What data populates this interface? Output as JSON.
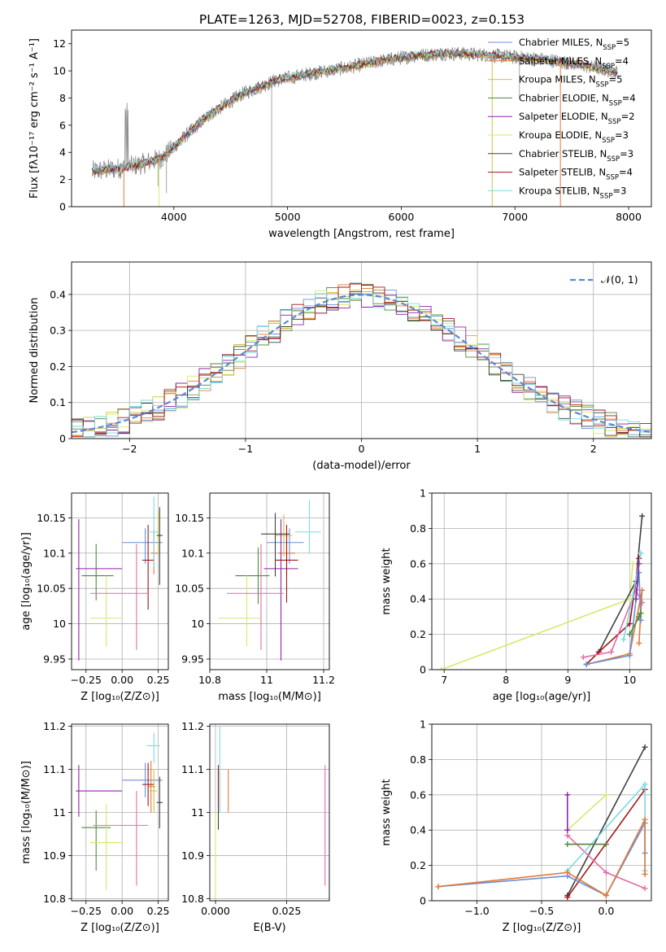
{
  "figure": {
    "title": "PLATE=1263, MJD=52708, FIBERID=0023, z=0.153"
  },
  "colors": {
    "chabrier_miles": "#6b8fd6",
    "salpeter_miles": "#e07b39",
    "kroupa_miles": "#d4c045",
    "chabrier_elodie": "#4c8a3b",
    "salpeter_elodie": "#8e24aa",
    "kroupa_elodie": "#d9e86a",
    "chabrier_stelib": "#404040",
    "salpeter_stelib": "#a31515",
    "kroupa_stelib": "#7fd9e0",
    "pink": "#e86aa8",
    "green": "#2e7d32",
    "data_gray": "#808080",
    "normal_curve": "#5b86d6",
    "grid": "#b0b0b0"
  },
  "chart_data": [
    {
      "id": "spectrum",
      "type": "line",
      "title": "PLATE=1263, MJD=52708, FIBERID=0023, z=0.153",
      "xlabel": "wavelength [Angstrom, rest frame]",
      "ylabel": "Flux [fλ10⁻¹⁷ erg cm⁻² s⁻¹ A⁻¹]",
      "xlim": [
        3100,
        8200
      ],
      "ylim": [
        0,
        13
      ],
      "xticks": [
        4000,
        5000,
        6000,
        7000,
        8000
      ],
      "yticks": [
        0,
        2,
        4,
        6,
        8,
        10,
        12
      ],
      "legend": "top-right",
      "series": [
        {
          "name": "Chabrier MILES, N_SSP=5",
          "color": "#6b8fd6"
        },
        {
          "name": "Salpeter MILES, N_SSP=4",
          "color": "#e07b39"
        },
        {
          "name": "Kroupa MILES, N_SSP=5",
          "color": "#d4c045"
        },
        {
          "name": "Chabrier ELODIE, N_SSP=4",
          "color": "#4c8a3b"
        },
        {
          "name": "Salpeter ELODIE, N_SSP=2",
          "color": "#8e24aa"
        },
        {
          "name": "Kroupa ELODIE, N_SSP=3",
          "color": "#d9e86a"
        },
        {
          "name": "Chabrier STELIB, N_SSP=3",
          "color": "#404040"
        },
        {
          "name": "Salpeter STELIB, N_SSP=4",
          "color": "#a31515"
        },
        {
          "name": "Kroupa STELIB, N_SSP=3",
          "color": "#7fd9e0"
        }
      ],
      "continuum": {
        "x": [
          3280,
          3500,
          3700,
          3900,
          4100,
          4300,
          4600,
          4900,
          5200,
          5500,
          5800,
          6100,
          6400,
          6700,
          7000,
          7300,
          7600,
          7900
        ],
        "y": [
          2.6,
          2.8,
          3.1,
          3.6,
          5.2,
          6.7,
          8.3,
          9.3,
          9.8,
          10.2,
          10.7,
          11.1,
          11.3,
          11.2,
          11.0,
          10.8,
          10.4,
          9.9
        ]
      },
      "data_range": [
        3280,
        7900
      ]
    },
    {
      "id": "residuals",
      "type": "histogram",
      "xlabel": "(data-model)/error",
      "ylabel": "Normed distribution",
      "xlim": [
        -2.5,
        2.5
      ],
      "ylim": [
        0,
        0.49
      ],
      "xticks": [
        -2,
        -1,
        0,
        1,
        2
      ],
      "yticks": [
        0.0,
        0.1,
        0.2,
        0.3,
        0.4
      ],
      "legend": "top-right",
      "reference": {
        "name": "𝒩(0, 1)",
        "mean": 0,
        "sigma": 1
      }
    },
    {
      "id": "age_vs_Z",
      "type": "errorbar",
      "xlabel": "Z [log₁₀(Z/Z⊙)]",
      "ylabel": "age  [log₁₀(age/yr)]",
      "xlim": [
        -0.35,
        0.32
      ],
      "ylim": [
        9.935,
        10.185
      ],
      "xticks": [
        -0.25,
        0.0,
        0.25
      ],
      "xticklabels": [
        "−0.25",
        "0.00",
        "0.25"
      ],
      "yticks": [
        9.95,
        10.0,
        10.05,
        10.1,
        10.15
      ],
      "points": [
        {
          "color": "#6b8fd6",
          "x": 0.16,
          "xerr": [
            0.16,
            0.12
          ],
          "y": 10.115,
          "yerr": [
            0.03,
            0.02
          ]
        },
        {
          "color": "#e07b39",
          "x": 0.22,
          "xerr": [
            0.02,
            0.03
          ],
          "y": 10.1,
          "yerr": [
            0.03,
            0.03
          ]
        },
        {
          "color": "#d4c045",
          "x": 0.25,
          "xerr": [
            0.01,
            0.01
          ],
          "y": 10.13,
          "yerr": [
            0.03,
            0.03
          ]
        },
        {
          "color": "#4c8a3b",
          "x": -0.18,
          "xerr": [
            0.1,
            0.12
          ],
          "y": 10.068,
          "yerr": [
            0.035,
            0.045
          ]
        },
        {
          "color": "#8e24aa",
          "x": -0.3,
          "xerr": [
            0.02,
            0.3
          ],
          "y": 10.078,
          "yerr": [
            0.13,
            0.07
          ]
        },
        {
          "color": "#d9e86a",
          "x": -0.11,
          "xerr": [
            0.11,
            0.11
          ],
          "y": 10.008,
          "yerr": [
            0.04,
            0.06
          ]
        },
        {
          "color": "#404040",
          "x": 0.26,
          "xerr": [
            0.02,
            0.02
          ],
          "y": 10.125,
          "yerr": [
            0.07,
            0.04
          ]
        },
        {
          "color": "#a31515",
          "x": 0.18,
          "xerr": [
            0.04,
            0.04
          ],
          "y": 10.09,
          "yerr": [
            0.07,
            0.05
          ]
        },
        {
          "color": "#7fd9e0",
          "x": 0.22,
          "xerr": [
            0.05,
            0.04
          ],
          "y": 10.13,
          "yerr": [
            0.05,
            0.05
          ]
        },
        {
          "color": "#e86aa8",
          "x": 0.1,
          "xerr": [
            0.32,
            0.08
          ],
          "y": 10.043,
          "yerr": [
            0.08,
            0.07
          ]
        }
      ]
    },
    {
      "id": "age_vs_mass",
      "type": "errorbar",
      "xlabel": "mass [log₁₀(M/M⊙)]",
      "ylabel": "",
      "xlim": [
        10.8,
        11.22
      ],
      "ylim": [
        9.935,
        10.185
      ],
      "xticks": [
        10.8,
        11.0,
        11.2
      ],
      "yticks": [
        9.95,
        10.0,
        10.05,
        10.1,
        10.15
      ],
      "points": [
        {
          "color": "#6b8fd6",
          "x": 11.08,
          "xerr": [
            0.08,
            0.05
          ],
          "y": 10.115,
          "yerr": [
            0.03,
            0.02
          ]
        },
        {
          "color": "#e07b39",
          "x": 11.07,
          "xerr": [
            0.03,
            0.03
          ],
          "y": 10.1,
          "yerr": [
            0.03,
            0.03
          ]
        },
        {
          "color": "#d4c045",
          "x": 11.06,
          "xerr": [
            0.03,
            0.03
          ],
          "y": 10.125,
          "yerr": [
            0.03,
            0.03
          ]
        },
        {
          "color": "#4c8a3b",
          "x": 10.97,
          "xerr": [
            0.08,
            0.04
          ],
          "y": 10.068,
          "yerr": [
            0.04,
            0.04
          ]
        },
        {
          "color": "#8e24aa",
          "x": 11.05,
          "xerr": [
            0.06,
            0.06
          ],
          "y": 10.078,
          "yerr": [
            0.13,
            0.07
          ]
        },
        {
          "color": "#d9e86a",
          "x": 10.93,
          "xerr": [
            0.1,
            0.05
          ],
          "y": 10.008,
          "yerr": [
            0.04,
            0.06
          ]
        },
        {
          "color": "#404040",
          "x": 11.03,
          "xerr": [
            0.05,
            0.05
          ],
          "y": 10.127,
          "yerr": [
            0.06,
            0.03
          ]
        },
        {
          "color": "#a31515",
          "x": 11.07,
          "xerr": [
            0.04,
            0.04
          ],
          "y": 10.09,
          "yerr": [
            0.06,
            0.05
          ]
        },
        {
          "color": "#7fd9e0",
          "x": 11.15,
          "xerr": [
            0.05,
            0.04
          ],
          "y": 10.13,
          "yerr": [
            0.03,
            0.045
          ]
        },
        {
          "color": "#e86aa8",
          "x": 10.98,
          "xerr": [
            0.12,
            0.08
          ],
          "y": 10.043,
          "yerr": [
            0.08,
            0.07
          ]
        }
      ]
    },
    {
      "id": "weight_vs_age",
      "type": "line",
      "xlabel": "age  [log₁₀(age/yr)]",
      "ylabel": "mass weight",
      "xlim": [
        6.8,
        10.35
      ],
      "ylim": [
        0,
        1
      ],
      "xticks": [
        7,
        8,
        9,
        10
      ],
      "yticks": [
        0.0,
        0.2,
        0.4,
        0.6,
        0.8,
        1.0
      ],
      "series": [
        {
          "color": "#d9e86a",
          "x": [
            6.95,
            10.0,
            10.05
          ],
          "y": [
            0.0,
            0.4,
            0.6
          ]
        },
        {
          "color": "#404040",
          "x": [
            9.5,
            10.1,
            10.2
          ],
          "y": [
            0.1,
            0.5,
            0.87
          ]
        },
        {
          "color": "#a31515",
          "x": [
            9.3,
            9.5,
            10.0,
            10.15
          ],
          "y": [
            0.03,
            0.1,
            0.26,
            0.63
          ]
        },
        {
          "color": "#e86aa8",
          "x": [
            9.25,
            9.7,
            10.1,
            10.2
          ],
          "y": [
            0.07,
            0.1,
            0.45,
            0.38
          ]
        },
        {
          "color": "#7fd9e0",
          "x": [
            9.9,
            10.05,
            10.18
          ],
          "y": [
            0.17,
            0.42,
            0.66
          ]
        },
        {
          "color": "#e07b39",
          "x": [
            9.3,
            10.0,
            10.2,
            10.15
          ],
          "y": [
            0.03,
            0.09,
            0.45,
            0.15
          ]
        },
        {
          "color": "#6b8fd6",
          "x": [
            9.3,
            10.0,
            10.15,
            10.18
          ],
          "y": [
            0.03,
            0.08,
            0.55,
            0.28
          ]
        },
        {
          "color": "#4c8a3b",
          "x": [
            10.0,
            10.15,
            10.18
          ],
          "y": [
            0.2,
            0.3,
            0.32
          ]
        },
        {
          "color": "#8e24aa",
          "x": [
            10.1,
            10.15
          ],
          "y": [
            0.4,
            0.6
          ]
        }
      ]
    },
    {
      "id": "mass_vs_Z",
      "type": "errorbar",
      "xlabel": "Z [log₁₀(Z/Z⊙)]",
      "ylabel": "mass [log₁₀(M/M⊙)]",
      "xlim": [
        -0.35,
        0.32
      ],
      "ylim": [
        10.795,
        11.205
      ],
      "xticks": [
        -0.25,
        0.0,
        0.25
      ],
      "xticklabels": [
        "−0.25",
        "0.00",
        "0.25"
      ],
      "yticks": [
        10.8,
        10.9,
        11.0,
        11.1,
        11.2
      ],
      "points": [
        {
          "color": "#6b8fd6",
          "x": 0.16,
          "xerr": [
            0.16,
            0.12
          ],
          "y": 11.075,
          "yerr": [
            0.04,
            0.04
          ]
        },
        {
          "color": "#e07b39",
          "x": 0.2,
          "xerr": [
            0.02,
            0.03
          ],
          "y": 11.06,
          "yerr": [
            0.06,
            0.06
          ]
        },
        {
          "color": "#d4c045",
          "x": 0.22,
          "xerr": [
            0.03,
            0.02
          ],
          "y": 11.05,
          "yerr": [
            0.05,
            0.05
          ]
        },
        {
          "color": "#4c8a3b",
          "x": -0.18,
          "xerr": [
            0.1,
            0.1
          ],
          "y": 10.965,
          "yerr": [
            0.1,
            0.04
          ]
        },
        {
          "color": "#8e24aa",
          "x": -0.3,
          "xerr": [
            0.02,
            0.3
          ],
          "y": 11.05,
          "yerr": [
            0.06,
            0.06
          ]
        },
        {
          "color": "#d9e86a",
          "x": -0.11,
          "xerr": [
            0.11,
            0.11
          ],
          "y": 10.93,
          "yerr": [
            0.11,
            0.09
          ]
        },
        {
          "color": "#404040",
          "x": 0.26,
          "xerr": [
            0.02,
            0.02
          ],
          "y": 11.023,
          "yerr": [
            0.06,
            0.06
          ]
        },
        {
          "color": "#a31515",
          "x": 0.18,
          "xerr": [
            0.04,
            0.04
          ],
          "y": 11.065,
          "yerr": [
            0.05,
            0.05
          ]
        },
        {
          "color": "#7fd9e0",
          "x": 0.22,
          "xerr": [
            0.05,
            0.04
          ],
          "y": 11.155,
          "yerr": [
            0.04,
            0.03
          ]
        },
        {
          "color": "#e86aa8",
          "x": 0.1,
          "xerr": [
            0.3,
            0.08
          ],
          "y": 10.97,
          "yerr": [
            0.14,
            0.08
          ]
        }
      ]
    },
    {
      "id": "mass_vs_ebv",
      "type": "errorbar",
      "xlabel": "E(B-V)",
      "ylabel": "",
      "xlim": [
        -0.002,
        0.04
      ],
      "ylim": [
        10.795,
        11.205
      ],
      "xticks": [
        0.0,
        0.025
      ],
      "xticklabels": [
        "0.000",
        "0.025"
      ],
      "yticks": [
        10.8,
        10.9,
        11.0,
        11.1,
        11.2
      ],
      "points": [
        {
          "color": "#7fd9e0",
          "x": 0.0015,
          "xerr": [
            0,
            0
          ],
          "y": 11.1,
          "yerr": [
            0.1,
            0.1
          ]
        },
        {
          "color": "#d9e86a",
          "x": 0.0,
          "xerr": [
            0,
            0
          ],
          "y": 10.9,
          "yerr": [
            0.1,
            0.1
          ]
        },
        {
          "color": "#404040",
          "x": 0.001,
          "xerr": [
            0,
            0
          ],
          "y": 11.03,
          "yerr": [
            0.07,
            0.07
          ]
        },
        {
          "color": "#e07b39",
          "x": 0.0045,
          "xerr": [
            0,
            0
          ],
          "y": 11.05,
          "yerr": [
            0.05,
            0.05
          ]
        },
        {
          "color": "#a31515",
          "x": 0.001,
          "xerr": [
            0,
            0
          ],
          "y": 11.06,
          "yerr": [
            0.05,
            0.05
          ]
        },
        {
          "color": "#e86aa8",
          "x": 0.0385,
          "xerr": [
            0,
            0
          ],
          "y": 10.97,
          "yerr": [
            0.14,
            0.14
          ]
        }
      ]
    },
    {
      "id": "weight_vs_Z",
      "type": "line",
      "xlabel": "Z [log₁₀(Z/Z⊙)]",
      "ylabel": "mass weight",
      "xlim": [
        -1.35,
        0.35
      ],
      "ylim": [
        0,
        1
      ],
      "xticks": [
        -1.0,
        -0.5,
        0.0
      ],
      "xticklabels": [
        "−1.0",
        "−0.5",
        "0.0"
      ],
      "yticks": [
        0.0,
        0.2,
        0.4,
        0.6,
        0.8,
        1.0
      ],
      "series": [
        {
          "color": "#d9e86a",
          "x": [
            -0.3,
            0.0
          ],
          "y": [
            0.4,
            0.6
          ]
        },
        {
          "color": "#404040",
          "x": [
            -0.3,
            0.3
          ],
          "y": [
            0.03,
            0.87
          ]
        },
        {
          "color": "#a31515",
          "x": [
            -0.3,
            0.3
          ],
          "y": [
            0.02,
            0.63
          ]
        },
        {
          "color": "#e86aa8",
          "x": [
            -0.3,
            0.0,
            0.3
          ],
          "y": [
            0.37,
            0.16,
            0.07
          ]
        },
        {
          "color": "#7fd9e0",
          "x": [
            -0.3,
            0.3,
            0.3
          ],
          "y": [
            0.17,
            0.66,
            0.17
          ]
        },
        {
          "color": "#6b8fd6",
          "x": [
            -1.3,
            -0.3,
            0.0,
            0.3,
            0.3
          ],
          "y": [
            0.08,
            0.14,
            0.03,
            0.44,
            0.27
          ]
        },
        {
          "color": "#e07b39",
          "x": [
            -1.3,
            -0.3,
            0.0,
            0.3,
            0.3
          ],
          "y": [
            0.08,
            0.16,
            0.03,
            0.46,
            0.15
          ]
        },
        {
          "color": "#4c8a3b",
          "x": [
            -0.3,
            0.0
          ],
          "y": [
            0.32,
            0.32
          ]
        },
        {
          "color": "#8e24aa",
          "x": [
            -0.3,
            -0.3
          ],
          "y": [
            0.4,
            0.6
          ]
        }
      ]
    }
  ]
}
